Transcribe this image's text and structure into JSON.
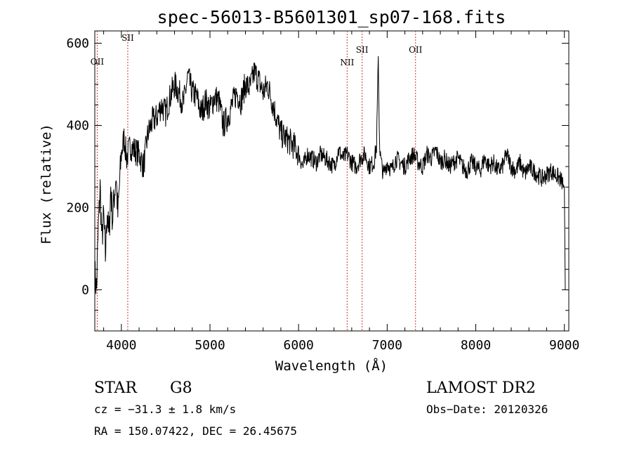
{
  "chart_data": {
    "type": "line",
    "title": "spec-56013-B5601301_sp07-168.fits",
    "xlabel": "Wavelength (Å)",
    "ylabel": "Flux (relative)",
    "xlim": [
      3700,
      9050
    ],
    "ylim": [
      -100,
      630
    ],
    "xticks": [
      4000,
      5000,
      6000,
      7000,
      8000,
      9000
    ],
    "yticks": [
      0,
      200,
      400,
      600
    ],
    "grid": false,
    "series": [
      {
        "x": [
          3700,
          3720,
          3740,
          3760,
          3780,
          3800,
          3820,
          3840,
          3860,
          3880,
          3900,
          3920,
          3940,
          3960,
          3980,
          4000,
          4030,
          4060,
          4100,
          4150,
          4200,
          4250,
          4300,
          4350,
          4400,
          4450,
          4500,
          4550,
          4600,
          4650,
          4700,
          4750,
          4800,
          4850,
          4900,
          4950,
          5000,
          5050,
          5100,
          5150,
          5200,
          5250,
          5300,
          5350,
          5400,
          5450,
          5500,
          5550,
          5600,
          5650,
          5700,
          5750,
          5800,
          5850,
          5900,
          5950,
          6000,
          6050,
          6100,
          6150,
          6200,
          6250,
          6300,
          6350,
          6400,
          6450,
          6500,
          6550,
          6600,
          6650,
          6700,
          6750,
          6800,
          6850,
          6880,
          6900,
          6910,
          6920,
          6940,
          6960,
          7000,
          7050,
          7100,
          7150,
          7200,
          7250,
          7300,
          7350,
          7400,
          7450,
          7500,
          7550,
          7600,
          7650,
          7700,
          7750,
          7800,
          7850,
          7900,
          7950,
          8000,
          8050,
          8100,
          8150,
          8200,
          8250,
          8300,
          8350,
          8400,
          8450,
          8500,
          8550,
          8600,
          8650,
          8700,
          8750,
          8800,
          8850,
          8900,
          8950,
          8980,
          9000,
          9010
        ],
        "y": [
          40,
          0,
          150,
          250,
          120,
          180,
          80,
          200,
          120,
          250,
          170,
          230,
          280,
          180,
          260,
          330,
          370,
          320,
          350,
          340,
          330,
          300,
          380,
          410,
          420,
          450,
          430,
          470,
          500,
          480,
          450,
          520,
          480,
          470,
          430,
          460,
          440,
          470,
          460,
          400,
          420,
          450,
          480,
          460,
          500,
          490,
          530,
          510,
          480,
          500,
          460,
          420,
          380,
          370,
          360,
          350,
          330,
          300,
          330,
          320,
          310,
          330,
          320,
          310,
          300,
          340,
          320,
          330,
          310,
          300,
          320,
          330,
          300,
          310,
          350,
          560,
          400,
          330,
          300,
          280,
          310,
          290,
          320,
          310,
          300,
          320,
          330,
          310,
          300,
          330,
          320,
          340,
          310,
          320,
          300,
          310,
          320,
          300,
          290,
          310,
          300,
          290,
          320,
          300,
          310,
          290,
          300,
          330,
          300,
          290,
          310,
          280,
          300,
          290,
          280,
          270,
          280,
          290,
          280,
          270,
          260,
          250,
          0
        ]
      }
    ],
    "emission_lines": [
      {
        "label": "OII",
        "x": 3727
      },
      {
        "label": "SII",
        "x": 4072
      },
      {
        "label": "NII",
        "x": 6548
      },
      {
        "label": "SII",
        "x": 6717
      },
      {
        "label": "OII",
        "x": 7320
      }
    ],
    "annotations": {
      "object_type": "STAR",
      "subclass": "G8",
      "survey": "LAMOST DR2",
      "cz": "cz = −31.3 ± 1.8 km/s",
      "obs_date": "Obs−Date: 20120326",
      "coords": "RA = 150.07422, DEC =  26.45675"
    }
  }
}
